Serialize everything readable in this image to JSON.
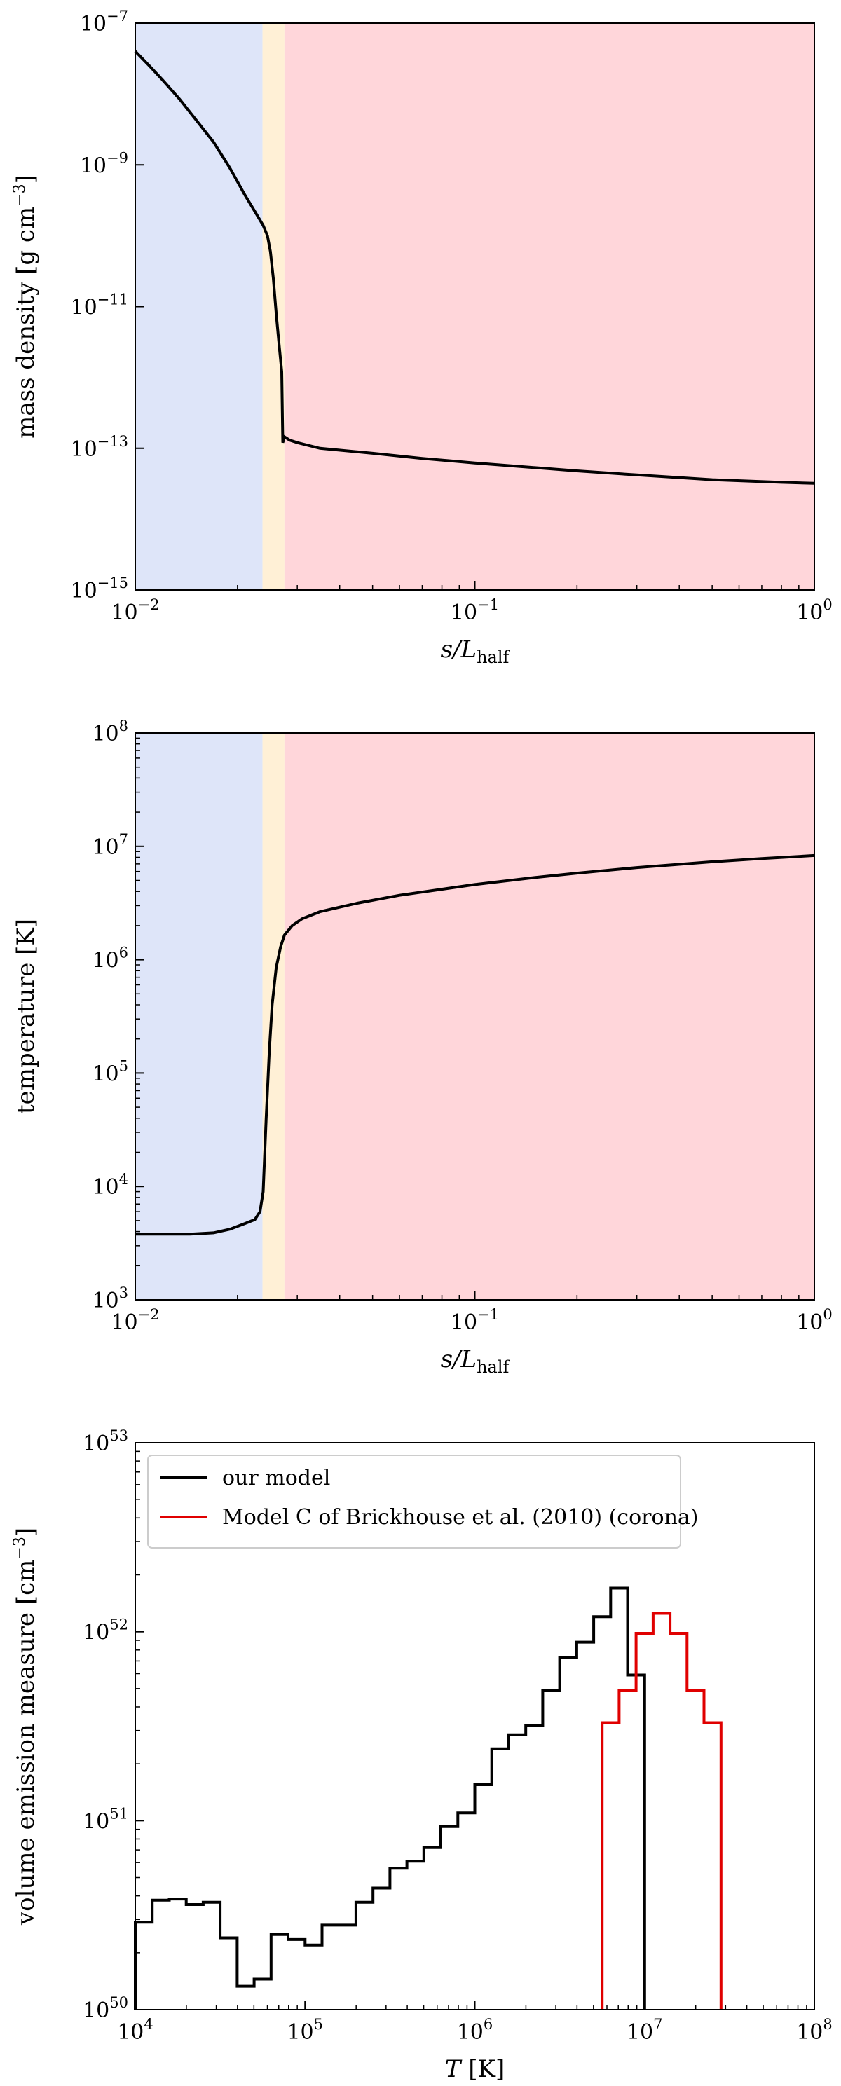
{
  "chart_data": [
    {
      "type": "line",
      "xscale": "log",
      "yscale": "log",
      "xlim": [
        0.01,
        1
      ],
      "ylim": [
        1e-15,
        1e-07
      ],
      "xlabel": "s/L_half",
      "xlabel_main": "s/L",
      "xlabel_sub": "half",
      "ylabel": "mass density [g cm^-3]",
      "ylabel_main": "mass density [g cm",
      "ylabel_sup": "−3",
      "ylabel_end": "]",
      "xticks": [
        {
          "value": 0.01,
          "base": "10",
          "exp": "−2"
        },
        {
          "value": 0.1,
          "base": "10",
          "exp": "−1"
        },
        {
          "value": 1,
          "base": "10",
          "exp": "0"
        }
      ],
      "yticks": [
        {
          "value": 1e-15,
          "base": "10",
          "exp": "−15"
        },
        {
          "value": 1e-13,
          "base": "10",
          "exp": "−13"
        },
        {
          "value": 1e-11,
          "base": "10",
          "exp": "−11"
        },
        {
          "value": 1e-09,
          "base": "10",
          "exp": "−9"
        },
        {
          "value": 1e-07,
          "base": "10",
          "exp": "−7"
        }
      ],
      "regions": [
        {
          "from": 0.01,
          "to": 0.0237,
          "color": "#dee5f9"
        },
        {
          "from": 0.0237,
          "to": 0.0275,
          "color": "#fff0d6"
        },
        {
          "from": 0.0275,
          "to": 1,
          "color": "#ffd6da"
        }
      ],
      "series": [
        {
          "color": "#000000",
          "x": [
            0.01,
            0.011,
            0.012,
            0.0135,
            0.015,
            0.017,
            0.019,
            0.021,
            0.0225,
            0.0238,
            0.0245,
            0.025,
            0.0255,
            0.026,
            0.0265,
            0.027,
            0.0272,
            0.0275,
            0.0285,
            0.03,
            0.035,
            0.05,
            0.07,
            0.1,
            0.2,
            0.3,
            0.5,
            0.8,
            1.0
          ],
          "y": [
            4e-08,
            2.5e-08,
            1.6e-08,
            8.5e-09,
            4.5e-09,
            2.1e-09,
            9e-10,
            3.8e-10,
            2.2e-10,
            1.4e-10,
            1e-10,
            6e-11,
            2.5e-11,
            8e-12,
            3e-12,
            1.2e-12,
            1.2e-13,
            1.45e-13,
            1.3e-13,
            1.2e-13,
            1e-13,
            8.5e-14,
            7.2e-14,
            6.2e-14,
            4.8e-14,
            4.2e-14,
            3.6e-14,
            3.3e-14,
            3.2e-14
          ]
        }
      ]
    },
    {
      "type": "line",
      "xscale": "log",
      "yscale": "log",
      "xlim": [
        0.01,
        1
      ],
      "ylim": [
        1000,
        100000000
      ],
      "xlabel": "s/L_half",
      "xlabel_main": "s/L",
      "xlabel_sub": "half",
      "ylabel": "temperature [K]",
      "ylabel_main": "temperature [K]",
      "ylabel_sup": "",
      "ylabel_end": "",
      "xticks": [
        {
          "value": 0.01,
          "base": "10",
          "exp": "−2"
        },
        {
          "value": 0.1,
          "base": "10",
          "exp": "−1"
        },
        {
          "value": 1,
          "base": "10",
          "exp": "0"
        }
      ],
      "yticks": [
        {
          "value": 1000,
          "base": "10",
          "exp": "3"
        },
        {
          "value": 10000,
          "base": "10",
          "exp": "4"
        },
        {
          "value": 100000,
          "base": "10",
          "exp": "5"
        },
        {
          "value": 1000000,
          "base": "10",
          "exp": "6"
        },
        {
          "value": 10000000,
          "base": "10",
          "exp": "7"
        },
        {
          "value": 100000000,
          "base": "10",
          "exp": "8"
        }
      ],
      "regions": [
        {
          "from": 0.01,
          "to": 0.0237,
          "color": "#dee5f9"
        },
        {
          "from": 0.0237,
          "to": 0.0275,
          "color": "#fff0d6"
        },
        {
          "from": 0.0275,
          "to": 1,
          "color": "#ffd6da"
        }
      ],
      "series": [
        {
          "color": "#000000",
          "x": [
            0.01,
            0.012,
            0.0145,
            0.017,
            0.019,
            0.021,
            0.0225,
            0.0233,
            0.0238,
            0.0243,
            0.0248,
            0.0253,
            0.026,
            0.0268,
            0.0275,
            0.029,
            0.031,
            0.035,
            0.045,
            0.06,
            0.1,
            0.15,
            0.2,
            0.3,
            0.5,
            0.7,
            1.0
          ],
          "y": [
            3800,
            3800,
            3800,
            3900,
            4200,
            4700,
            5100,
            6000,
            9000,
            40000,
            150000,
            400000,
            850000,
            1300000,
            1650000,
            2000000,
            2300000,
            2650000,
            3150000,
            3700000,
            4600000,
            5300000,
            5800000,
            6500000,
            7300000,
            7800000,
            8300000
          ]
        }
      ]
    },
    {
      "type": "line",
      "step": true,
      "xscale": "log",
      "yscale": "log",
      "xlim": [
        10000,
        100000000
      ],
      "ylim": [
        1e+50,
        1e+53
      ],
      "xlabel": "T [K]",
      "xlabel_main": "T",
      "xlabel_sub": "",
      "xlabel_end": " [K]",
      "ylabel": "volume emission measure [cm^-3]",
      "ylabel_main": "volume emission measure [cm",
      "ylabel_sup": "−3",
      "ylabel_end": "]",
      "legend": "top-left",
      "xticks": [
        {
          "value": 10000,
          "base": "10",
          "exp": "4"
        },
        {
          "value": 100000,
          "base": "10",
          "exp": "5"
        },
        {
          "value": 1000000,
          "base": "10",
          "exp": "6"
        },
        {
          "value": 10000000,
          "base": "10",
          "exp": "7"
        },
        {
          "value": 100000000,
          "base": "10",
          "exp": "8"
        }
      ],
      "yticks": [
        {
          "value": 1e+50,
          "base": "10",
          "exp": "50"
        },
        {
          "value": 1e+51,
          "base": "10",
          "exp": "51"
        },
        {
          "value": 1e+52,
          "base": "10",
          "exp": "52"
        },
        {
          "value": 1e+53,
          "base": "10",
          "exp": "53"
        }
      ],
      "series": [
        {
          "name": "our model",
          "color": "#000000",
          "edges": [
            10000,
            12589,
            15849,
            19953,
            25119,
            31623,
            39811,
            50119,
            63096,
            79433,
            100000,
            125893,
            158489,
            199526,
            251189,
            316228,
            398107,
            501187,
            630957,
            794328,
            1000000,
            1258925,
            1584893,
            1995262,
            2511886,
            3162278,
            3981072,
            5011872,
            6309573,
            7943282,
            10000000
          ],
          "values": [
            2.9e+50,
            3.8e+50,
            3.85e+50,
            3.6e+50,
            3.7e+50,
            2.4e+50,
            1.33e+50,
            1.45e+50,
            2.5e+50,
            2.35e+50,
            2.2e+50,
            2.8e+50,
            2.8e+50,
            3.7e+50,
            4.4e+50,
            5.6e+50,
            6.1e+50,
            7.2e+50,
            9.3e+50,
            1.1e+51,
            1.55e+51,
            2.4e+51,
            2.85e+51,
            3.2e+51,
            4.9e+51,
            7.3e+51,
            8.8e+51,
            1.2e+52,
            1.7e+52,
            5.9e+51
          ]
        },
        {
          "name": "Model C of Brickhouse et al. (2010) (corona)",
          "color": "#e00000",
          "edges": [
            5623413,
            7079458,
            8912509,
            11220185,
            14125375,
            17782794,
            22387211,
            28183829
          ],
          "values": [
            3.3e+51,
            4.9e+51,
            9.8e+51,
            1.25e+52,
            9.8e+51,
            4.9e+51,
            3.3e+51
          ]
        }
      ]
    }
  ]
}
